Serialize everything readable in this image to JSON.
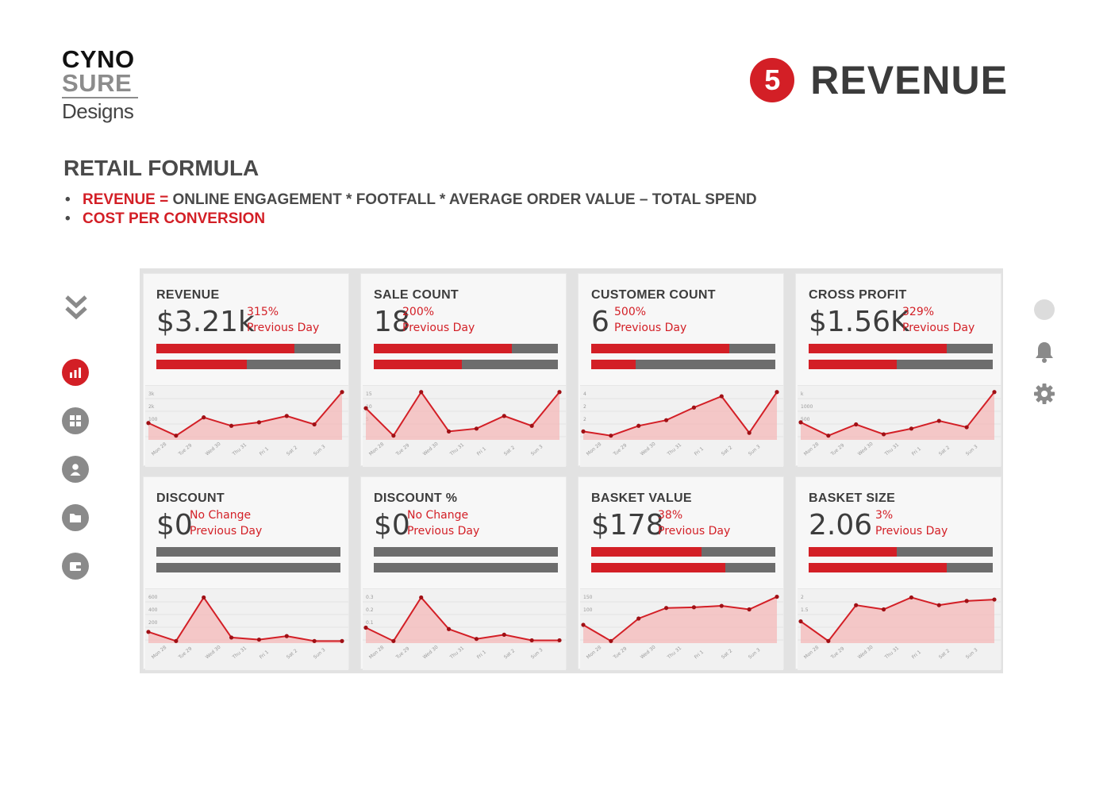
{
  "logo": {
    "line1": "CYNO",
    "line2": "SURE",
    "line3": "Designs"
  },
  "section": {
    "number": "5",
    "title": "REVENUE"
  },
  "formula": {
    "title": "RETAIL FORMULA",
    "line1_red": "REVENUE =",
    "line1_rest": " ONLINE ENGAGEMENT * FOOTFALL * AVERAGE ORDER VALUE – TOTAL SPEND",
    "line2_red": "COST PER CONVERSION"
  },
  "colors": {
    "accent": "#d31f26",
    "bar_gray": "#6d6d6d",
    "nav_gray": "#8a8a8a"
  },
  "left_nav": {
    "items": [
      "double-chevron-down-icon",
      "bar-chart-icon",
      "grid-icon",
      "user-icon",
      "folder-icon",
      "wallet-icon"
    ],
    "active": "bar-chart-icon"
  },
  "right_nav": {
    "items": [
      "status-dot-icon",
      "bell-icon",
      "gear-icon"
    ]
  },
  "x_labels": [
    "Mon 28",
    "Tue 29",
    "Wed 30",
    "Thu 31",
    "Fri 1",
    "Sat 2",
    "Sun 3"
  ],
  "cards": [
    {
      "title": "REVENUE",
      "value": "$3.21k",
      "change": "315%",
      "compare": "Previous Day",
      "bar1": 0.75,
      "bar2": 0.49,
      "yticks": [
        "3k",
        "2k",
        "100"
      ],
      "y": [
        2.4,
        0.6,
        3.2,
        2.0,
        2.5,
        3.4,
        2.2,
        6.8
      ]
    },
    {
      "title": "SALE COUNT",
      "value": "18",
      "change": "200%",
      "compare": "Previous Day",
      "bar1": 0.75,
      "bar2": 0.48,
      "yticks": [
        "15",
        "10",
        "5"
      ],
      "y": [
        4.5,
        0.6,
        6.8,
        1.2,
        1.6,
        3.4,
        2.0,
        6.8
      ]
    },
    {
      "title": "CUSTOMER COUNT",
      "value": "6",
      "change": "500%",
      "compare": "Previous Day",
      "bar1": 0.75,
      "bar2": 0.24,
      "yticks": [
        "4",
        "2",
        "2"
      ],
      "y": [
        1.2,
        0.6,
        2.0,
        2.8,
        4.6,
        6.2,
        1.0,
        6.8
      ]
    },
    {
      "title": "CROSS PROFIT",
      "value": "$1.56K",
      "change": "329%",
      "compare": "Previous Day",
      "bar1": 0.75,
      "bar2": 0.48,
      "yticks": [
        "k",
        "1000",
        "500"
      ],
      "y": [
        2.5,
        0.6,
        2.2,
        0.8,
        1.6,
        2.7,
        1.8,
        6.8
      ]
    },
    {
      "title": "DISCOUNT",
      "value": "$0",
      "change": "No Change",
      "compare": "Previous Day",
      "bar1": 0,
      "bar2": 0,
      "yticks": [
        "600",
        "400",
        "200"
      ],
      "y": [
        1.6,
        0.3,
        6.5,
        0.8,
        0.5,
        1.0,
        0.3,
        0.3
      ]
    },
    {
      "title": "DISCOUNT %",
      "value": "$0",
      "change": "No Change",
      "compare": "Previous Day",
      "bar1": 0,
      "bar2": 0,
      "yticks": [
        "0.3",
        "0.2",
        "0.1"
      ],
      "y": [
        2.2,
        0.3,
        6.5,
        2.0,
        0.6,
        1.2,
        0.4,
        0.4
      ]
    },
    {
      "title": "BASKET VALUE",
      "value": "$178",
      "change": "38%",
      "compare": "Previous Day",
      "bar1": 0.6,
      "bar2": 0.73,
      "yticks": [
        "150",
        "100"
      ],
      "y": [
        2.6,
        0.3,
        3.5,
        5.0,
        5.1,
        5.3,
        4.8,
        6.6
      ]
    },
    {
      "title": "BASKET SIZE",
      "value": "2.06",
      "change": "3%",
      "compare": "Previous Day",
      "bar1": 0.48,
      "bar2": 0.75,
      "yticks": [
        "2",
        "1.5",
        "1"
      ],
      "y": [
        3.1,
        0.3,
        5.4,
        4.8,
        6.5,
        5.4,
        6.0,
        6.2
      ]
    }
  ]
}
